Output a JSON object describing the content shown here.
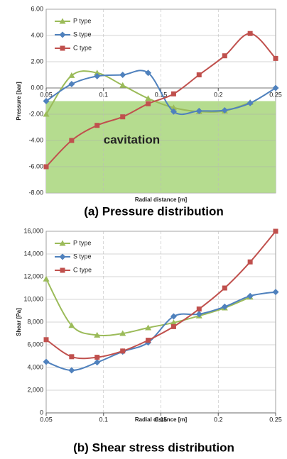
{
  "chart_data": [
    {
      "type": "line",
      "caption": "(a) Pressure distribution",
      "xlabel": "Radial distance [m]",
      "ylabel": "Pressure [bar]",
      "x": [
        0.05,
        0.0722,
        0.0944,
        0.1167,
        0.1389,
        0.1611,
        0.1833,
        0.2056,
        0.2278,
        0.25
      ],
      "series": [
        {
          "name": "P type",
          "color": "#9bbb59",
          "marker": "triangle",
          "values": [
            -2.0,
            0.95,
            1.15,
            0.2,
            -0.8,
            -1.5,
            -1.8,
            -1.75,
            -1.1,
            null
          ]
        },
        {
          "name": "S type",
          "color": "#4f81bd",
          "marker": "diamond",
          "values": [
            -1.0,
            0.3,
            0.9,
            1.0,
            1.15,
            -1.8,
            -1.75,
            -1.7,
            -1.15,
            0.0
          ]
        },
        {
          "name": "C type",
          "color": "#c0504d",
          "marker": "square",
          "values": [
            -6.0,
            -4.0,
            -2.85,
            -2.2,
            -1.2,
            -0.45,
            1.0,
            2.45,
            4.15,
            2.25
          ]
        }
      ],
      "xlim": [
        0.05,
        0.25
      ],
      "xticks": [
        0.05,
        0.1,
        0.15,
        0.2,
        0.25
      ],
      "x_axis_at": 0,
      "ylim": [
        -8,
        6
      ],
      "yticks": [
        {
          "value": -8,
          "label": "-8.00"
        },
        {
          "value": -6,
          "label": "-6.00"
        },
        {
          "value": -4,
          "label": "-4.00"
        },
        {
          "value": -2,
          "label": "-2.00"
        },
        {
          "value": 0,
          "label": "0.00"
        },
        {
          "value": 2,
          "label": "2.00"
        },
        {
          "value": 4,
          "label": "4.00"
        },
        {
          "value": 6,
          "label": "6.00"
        }
      ],
      "grid": true,
      "legend": "upper left",
      "shaded_region": {
        "ylim": [
          -8,
          -1
        ],
        "color": "#b5dc8f"
      },
      "annotations": [
        {
          "text": "cavitation",
          "x": 0.1,
          "y": -4,
          "color": "#2db34a"
        }
      ]
    },
    {
      "type": "line",
      "caption": "(b) Shear stress distribution",
      "xlabel": "Radial distance [m]",
      "ylabel": "Shear [Pa]",
      "x": [
        0.05,
        0.0722,
        0.0944,
        0.1167,
        0.1389,
        0.1611,
        0.1833,
        0.2056,
        0.2278,
        0.25
      ],
      "series": [
        {
          "name": "P type",
          "color": "#9bbb59",
          "marker": "triangle",
          "values": [
            11800,
            7700,
            6850,
            7000,
            7500,
            7950,
            8550,
            9250,
            10200,
            null
          ]
        },
        {
          "name": "S type",
          "color": "#4f81bd",
          "marker": "diamond",
          "values": [
            4500,
            3750,
            4450,
            5400,
            6200,
            8500,
            8700,
            9350,
            10300,
            10650
          ]
        },
        {
          "name": "C type",
          "color": "#c0504d",
          "marker": "square",
          "values": [
            6450,
            4950,
            4900,
            5450,
            6400,
            7600,
            9150,
            11000,
            13300,
            16000
          ]
        }
      ],
      "xlim": [
        0.05,
        0.25
      ],
      "xticks": [
        0.05,
        0.1,
        0.15,
        0.2,
        0.25
      ],
      "x_axis_at": 0,
      "ylim": [
        0,
        16000
      ],
      "yticks": [
        0,
        {
          "value": 2000,
          "label": "2,000"
        },
        {
          "value": 4000,
          "label": "4,000"
        },
        {
          "value": 6000,
          "label": "6,000"
        },
        {
          "value": 8000,
          "label": "8,000"
        },
        {
          "value": 10000,
          "label": "10,000"
        },
        {
          "value": 12000,
          "label": "12,000"
        },
        {
          "value": 14000,
          "label": "14,000"
        },
        {
          "value": 16000,
          "label": "16,000"
        }
      ],
      "grid": true,
      "legend": "upper left"
    }
  ]
}
